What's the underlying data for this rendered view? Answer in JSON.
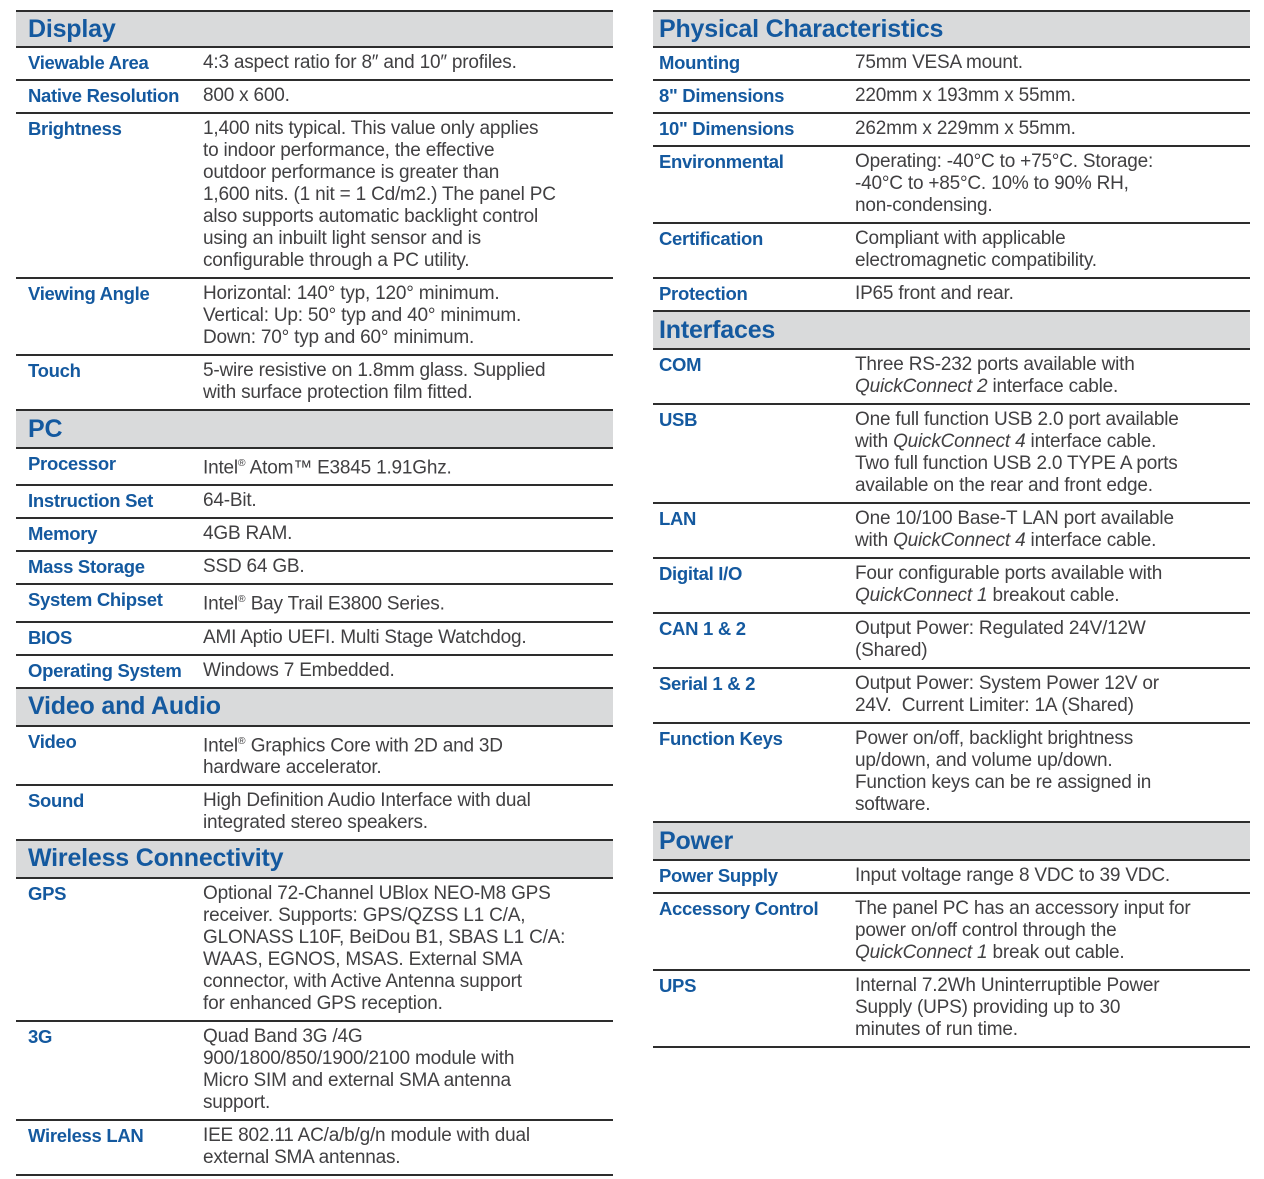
{
  "colors": {
    "accent": "#14599f",
    "text": "#414042",
    "bar_bg": "#d9dadb",
    "line": "#2d2d2d",
    "page_bg": "#ffffff"
  },
  "document": {
    "columns": [
      {
        "name": "left",
        "sections": [
          {
            "title": "Display",
            "rows": [
              {
                "label": "Viewable Area",
                "value_runs": [
                  {
                    "t": "4:3 aspect ratio for 8″ and 10″ profiles."
                  }
                ]
              },
              {
                "label": "Native Resolution",
                "value_runs": [
                  {
                    "t": "800 x 600."
                  }
                ]
              },
              {
                "label": "Brightness",
                "value_runs": [
                  {
                    "t": "1,400 nits typical. This value only applies"
                  },
                  {
                    "br": true
                  },
                  {
                    "t": "to indoor performance, the effective"
                  },
                  {
                    "br": true
                  },
                  {
                    "t": "outdoor performance is greater than"
                  },
                  {
                    "br": true
                  },
                  {
                    "t": "1,600 nits. (1 nit = 1 Cd/m2.) The panel PC"
                  },
                  {
                    "br": true
                  },
                  {
                    "t": "also supports automatic backlight control"
                  },
                  {
                    "br": true
                  },
                  {
                    "t": "using an inbuilt light sensor and is"
                  },
                  {
                    "br": true
                  },
                  {
                    "t": "configurable through a PC utility."
                  }
                ]
              },
              {
                "label": "Viewing Angle",
                "value_runs": [
                  {
                    "t": "Horizontal: 140° typ, 120° minimum."
                  },
                  {
                    "br": true
                  },
                  {
                    "t": "Vertical: Up: 50° typ and 40° minimum."
                  },
                  {
                    "br": true
                  },
                  {
                    "t": "Down: 70° typ and 60° minimum."
                  }
                ]
              },
              {
                "label": "Touch",
                "value_runs": [
                  {
                    "t": "5-wire resistive on 1.8mm glass. Supplied"
                  },
                  {
                    "br": true
                  },
                  {
                    "t": "with surface protection film fitted."
                  }
                ]
              }
            ]
          },
          {
            "title": "PC",
            "rows": [
              {
                "label": "Processor",
                "value_runs": [
                  {
                    "t": "Intel"
                  },
                  {
                    "t": "®",
                    "s": true
                  },
                  {
                    "t": " Atom™ E3845 1.91Ghz."
                  }
                ]
              },
              {
                "label": "Instruction Set",
                "value_runs": [
                  {
                    "t": "64-Bit."
                  }
                ]
              },
              {
                "label": "Memory",
                "value_runs": [
                  {
                    "t": "4GB RAM."
                  }
                ]
              },
              {
                "label": "Mass Storage",
                "value_runs": [
                  {
                    "t": "SSD 64 GB."
                  }
                ]
              },
              {
                "label": "System Chipset",
                "value_runs": [
                  {
                    "t": "Intel"
                  },
                  {
                    "t": "®",
                    "s": true
                  },
                  {
                    "t": " Bay Trail E3800 Series."
                  }
                ]
              },
              {
                "label": "BIOS",
                "value_runs": [
                  {
                    "t": "AMI Aptio UEFI. Multi Stage Watchdog."
                  }
                ]
              },
              {
                "label": "Operating System",
                "value_runs": [
                  {
                    "t": "Windows 7 Embedded."
                  }
                ]
              }
            ]
          },
          {
            "title": "Video and Audio",
            "rows": [
              {
                "label": "Video",
                "value_runs": [
                  {
                    "t": "Intel"
                  },
                  {
                    "t": "®",
                    "s": true
                  },
                  {
                    "t": " Graphics Core with 2D and 3D"
                  },
                  {
                    "br": true
                  },
                  {
                    "t": "hardware accelerator."
                  }
                ]
              },
              {
                "label": "Sound",
                "value_runs": [
                  {
                    "t": "High Definition Audio Interface with dual"
                  },
                  {
                    "br": true
                  },
                  {
                    "t": "integrated stereo speakers."
                  }
                ]
              }
            ]
          },
          {
            "title": "Wireless Connectivity",
            "rows": [
              {
                "label": "GPS",
                "value_runs": [
                  {
                    "t": "Optional 72-Channel UBlox NEO-M8 GPS"
                  },
                  {
                    "br": true
                  },
                  {
                    "t": "receiver. Supports: GPS/QZSS L1 C/A,"
                  },
                  {
                    "br": true
                  },
                  {
                    "t": "GLONASS L10F, BeiDou B1, SBAS L1 C/A:"
                  },
                  {
                    "br": true
                  },
                  {
                    "t": "WAAS, EGNOS, MSAS. External SMA"
                  },
                  {
                    "br": true
                  },
                  {
                    "t": "connector, with Active Antenna support"
                  },
                  {
                    "br": true
                  },
                  {
                    "t": "for enhanced GPS reception."
                  }
                ]
              },
              {
                "label": "3G",
                "value_runs": [
                  {
                    "t": "Quad Band 3G /4G"
                  },
                  {
                    "br": true
                  },
                  {
                    "t": "900/1800/850/1900/2100 module with"
                  },
                  {
                    "br": true
                  },
                  {
                    "t": "Micro SIM and external SMA antenna"
                  },
                  {
                    "br": true
                  },
                  {
                    "t": "support."
                  }
                ]
              },
              {
                "label": "Wireless LAN",
                "value_runs": [
                  {
                    "t": "IEE 802.11 AC/a/b/g/n module with dual"
                  },
                  {
                    "br": true
                  },
                  {
                    "t": "external SMA antennas."
                  }
                ]
              }
            ]
          }
        ]
      },
      {
        "name": "right",
        "sections": [
          {
            "title": "Physical Characteristics",
            "rows": [
              {
                "label": "Mounting",
                "value_runs": [
                  {
                    "t": "75mm VESA mount."
                  }
                ]
              },
              {
                "label": "8\" Dimensions",
                "value_runs": [
                  {
                    "t": "220mm x 193mm x 55mm."
                  }
                ]
              },
              {
                "label": "10\" Dimensions",
                "value_runs": [
                  {
                    "t": "262mm x 229mm x 55mm."
                  }
                ]
              },
              {
                "label": "Environmental",
                "value_runs": [
                  {
                    "t": "Operating: -40°C to +75°C. Storage:"
                  },
                  {
                    "br": true
                  },
                  {
                    "t": "-40°C to +85°C. 10% to 90% RH,"
                  },
                  {
                    "br": true
                  },
                  {
                    "t": "non-condensing."
                  }
                ]
              },
              {
                "label": "Certification",
                "value_runs": [
                  {
                    "t": "Compliant with applicable"
                  },
                  {
                    "br": true
                  },
                  {
                    "t": "electromagnetic compatibility."
                  }
                ]
              },
              {
                "label": "Protection",
                "value_runs": [
                  {
                    "t": "IP65 front and rear."
                  }
                ]
              }
            ]
          },
          {
            "title": "Interfaces",
            "rows": [
              {
                "label": "COM",
                "value_runs": [
                  {
                    "t": "Three RS-232 ports available with"
                  },
                  {
                    "br": true
                  },
                  {
                    "t": "QuickConnect 2",
                    "i": true
                  },
                  {
                    "t": " interface cable."
                  }
                ]
              },
              {
                "label": "USB",
                "value_runs": [
                  {
                    "t": "One full function USB 2.0 port available"
                  },
                  {
                    "br": true
                  },
                  {
                    "t": "with "
                  },
                  {
                    "t": "QuickConnect 4",
                    "i": true
                  },
                  {
                    "t": " interface cable."
                  },
                  {
                    "br": true
                  },
                  {
                    "t": "Two full function USB 2.0 TYPE A ports"
                  },
                  {
                    "br": true
                  },
                  {
                    "t": "available on the rear and front edge."
                  }
                ]
              },
              {
                "label": "LAN",
                "value_runs": [
                  {
                    "t": "One 10/100 Base-T LAN port available"
                  },
                  {
                    "br": true
                  },
                  {
                    "t": "with "
                  },
                  {
                    "t": "QuickConnect 4",
                    "i": true
                  },
                  {
                    "t": " interface cable."
                  }
                ]
              },
              {
                "label": "Digital I/O",
                "value_runs": [
                  {
                    "t": "Four configurable ports available with"
                  },
                  {
                    "br": true
                  },
                  {
                    "t": "QuickConnect 1",
                    "i": true
                  },
                  {
                    "t": " breakout cable."
                  }
                ]
              },
              {
                "label": "CAN 1 & 2",
                "value_runs": [
                  {
                    "t": "Output Power: Regulated 24V/12W"
                  },
                  {
                    "br": true
                  },
                  {
                    "t": "(Shared)"
                  }
                ]
              },
              {
                "label": "Serial 1 & 2",
                "value_runs": [
                  {
                    "t": "Output Power: System Power 12V or"
                  },
                  {
                    "br": true
                  },
                  {
                    "t": "24V.  Current Limiter: 1A (Shared)"
                  }
                ]
              },
              {
                "label": "Function Keys",
                "value_runs": [
                  {
                    "t": "Power on/off, backlight brightness"
                  },
                  {
                    "br": true
                  },
                  {
                    "t": "up/down, and volume up/down."
                  },
                  {
                    "br": true
                  },
                  {
                    "t": "Function keys can be re assigned in"
                  },
                  {
                    "br": true
                  },
                  {
                    "t": "software."
                  }
                ]
              }
            ]
          },
          {
            "title": "Power",
            "rows": [
              {
                "label": "Power Supply",
                "value_runs": [
                  {
                    "t": "Input voltage range 8 VDC to 39 VDC."
                  }
                ]
              },
              {
                "label": "Accessory Control",
                "value_runs": [
                  {
                    "t": "The panel PC has an accessory input for"
                  },
                  {
                    "br": true
                  },
                  {
                    "t": "power on/off control through the"
                  },
                  {
                    "br": true
                  },
                  {
                    "t": "QuickConnect 1",
                    "i": true
                  },
                  {
                    "t": " break out cable."
                  }
                ]
              },
              {
                "label": "UPS",
                "value_runs": [
                  {
                    "t": "Internal 7.2Wh Uninterruptible Power"
                  },
                  {
                    "br": true
                  },
                  {
                    "t": "Supply (UPS) providing up to 30"
                  },
                  {
                    "br": true
                  },
                  {
                    "t": "minutes of run time."
                  }
                ]
              }
            ]
          }
        ]
      }
    ]
  }
}
